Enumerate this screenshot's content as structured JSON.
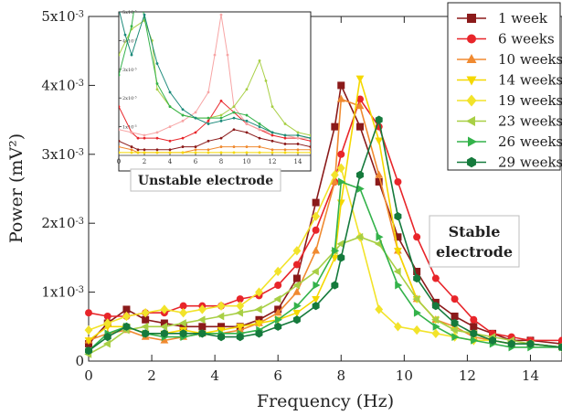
{
  "chart_data": [
    {
      "type": "line",
      "xlabel": "Frequency (Hz)",
      "ylabel": "Power (mV²)",
      "xlim": [
        0,
        15
      ],
      "ylim": [
        0,
        0.005
      ],
      "x_ticks": [
        0,
        2,
        4,
        6,
        8,
        10,
        12,
        14
      ],
      "x_tick_labels": [
        "0",
        "2",
        "4",
        "6",
        "8",
        "10",
        "12",
        "14"
      ],
      "y_ticks": [
        0,
        0.001,
        0.002,
        0.003,
        0.004,
        0.005
      ],
      "y_tick_labels": [
        {
          "base": "0",
          "exp": ""
        },
        {
          "base": "1x10",
          "exp": "-3"
        },
        {
          "base": "2x10",
          "exp": "-3"
        },
        {
          "base": "3x10",
          "exp": "-3"
        },
        {
          "base": "4x10",
          "exp": "-3"
        },
        {
          "base": "5x10",
          "exp": "-3"
        }
      ],
      "grid": false,
      "legend_position": "top-right",
      "annotation": {
        "line1": "Stable",
        "line2": "electrode"
      },
      "series": [
        {
          "name": "1 week",
          "color": "#8b1a1a",
          "marker": "square",
          "x": [
            0,
            0.6,
            1.2,
            1.8,
            2.4,
            3.0,
            3.6,
            4.2,
            4.8,
            5.4,
            6.0,
            6.6,
            7.2,
            7.8,
            8.0,
            8.6,
            9.2,
            9.8,
            10.4,
            11.0,
            11.6,
            12.2,
            12.8,
            13.4,
            14.0,
            15.0
          ],
          "y": [
            0.00025,
            0.00055,
            0.00075,
            0.0006,
            0.00055,
            0.0005,
            0.0005,
            0.0005,
            0.0005,
            0.0006,
            0.00075,
            0.0012,
            0.0023,
            0.0034,
            0.004,
            0.0034,
            0.0026,
            0.0018,
            0.0013,
            0.00085,
            0.00065,
            0.0005,
            0.0004,
            0.0003,
            0.0003,
            0.00025
          ]
        },
        {
          "name": "6 weeks",
          "color": "#e8252a",
          "marker": "circle",
          "x": [
            0,
            0.6,
            1.2,
            1.8,
            2.4,
            3.0,
            3.6,
            4.2,
            4.8,
            5.4,
            6.0,
            6.6,
            7.2,
            7.8,
            8.0,
            8.6,
            9.2,
            9.8,
            10.4,
            11.0,
            11.6,
            12.2,
            12.8,
            13.4,
            14.0,
            15.0
          ],
          "y": [
            0.0007,
            0.00065,
            0.00065,
            0.0007,
            0.0007,
            0.0008,
            0.0008,
            0.0008,
            0.0009,
            0.00095,
            0.0011,
            0.0014,
            0.0019,
            0.0026,
            0.003,
            0.0038,
            0.0034,
            0.0026,
            0.0018,
            0.0012,
            0.0009,
            0.0006,
            0.0004,
            0.00035,
            0.0003,
            0.0003
          ]
        },
        {
          "name": "10 weeks",
          "color": "#f08a30",
          "marker": "triangle-up",
          "x": [
            0,
            0.6,
            1.2,
            1.8,
            2.4,
            3.0,
            3.6,
            4.2,
            4.8,
            5.4,
            6.0,
            6.6,
            7.2,
            7.8,
            8.0,
            8.6,
            9.2,
            9.8,
            10.4,
            11.0,
            11.6,
            12.2,
            12.8,
            13.4,
            14.0,
            15.0
          ],
          "y": [
            0.0003,
            0.0004,
            0.00045,
            0.00035,
            0.0003,
            0.00035,
            0.0004,
            0.0004,
            0.00045,
            0.00055,
            0.0007,
            0.001,
            0.0016,
            0.0026,
            0.0038,
            0.0037,
            0.0027,
            0.0016,
            0.0009,
            0.0006,
            0.0005,
            0.00035,
            0.0003,
            0.00025,
            0.00025,
            0.0002
          ]
        },
        {
          "name": "14 weeks",
          "color": "#f5d800",
          "marker": "triangle-down",
          "x": [
            0,
            0.6,
            1.2,
            1.8,
            2.4,
            3.0,
            3.6,
            4.2,
            4.8,
            5.4,
            6.0,
            6.6,
            7.2,
            7.8,
            8.0,
            8.6,
            9.2,
            9.8,
            10.4,
            11.0,
            11.6,
            12.2,
            12.8,
            13.4,
            14.0,
            15.0
          ],
          "y": [
            0.0003,
            0.0005,
            0.0005,
            0.0004,
            0.0004,
            0.00045,
            0.0004,
            0.00045,
            0.0005,
            0.00055,
            0.0006,
            0.0007,
            0.0009,
            0.0015,
            0.0023,
            0.0041,
            0.0032,
            0.0016,
            0.0009,
            0.0006,
            0.00045,
            0.0004,
            0.0003,
            0.00025,
            0.00025,
            0.0002
          ]
        },
        {
          "name": "19 weeks",
          "color": "#f2e32a",
          "marker": "diamond",
          "x": [
            0,
            0.6,
            1.2,
            1.8,
            2.4,
            3.0,
            3.6,
            4.2,
            4.8,
            5.4,
            6.0,
            6.6,
            7.2,
            7.8,
            8.0,
            8.6,
            9.2,
            9.8,
            10.4,
            11.0,
            11.6,
            12.2,
            12.8,
            13.4,
            14.0,
            15.0
          ],
          "y": [
            0.00045,
            0.00055,
            0.00065,
            0.0007,
            0.00075,
            0.0007,
            0.00075,
            0.0008,
            0.0008,
            0.001,
            0.0013,
            0.0016,
            0.0021,
            0.0027,
            0.0028,
            0.0018,
            0.00075,
            0.0005,
            0.00045,
            0.0004,
            0.00035,
            0.0003,
            0.0003,
            0.00025,
            0.00025,
            0.0002
          ]
        },
        {
          "name": "23 weeks",
          "color": "#a8cf45",
          "marker": "triangle-left",
          "x": [
            0,
            0.6,
            1.2,
            1.8,
            2.4,
            3.0,
            3.6,
            4.2,
            4.8,
            5.4,
            6.0,
            6.6,
            7.2,
            7.8,
            8.0,
            8.6,
            9.2,
            9.8,
            10.4,
            11.0,
            11.6,
            12.2,
            12.8,
            13.4,
            14.0,
            15.0
          ],
          "y": [
            0.0001,
            0.00025,
            0.00045,
            0.0005,
            0.0005,
            0.00055,
            0.0006,
            0.00065,
            0.0007,
            0.00075,
            0.0009,
            0.0011,
            0.0013,
            0.0016,
            0.0017,
            0.0018,
            0.0017,
            0.0013,
            0.0009,
            0.0006,
            0.00045,
            0.0004,
            0.00035,
            0.0003,
            0.00025,
            0.0002
          ]
        },
        {
          "name": "26 weeks",
          "color": "#33b24a",
          "marker": "triangle-right",
          "x": [
            0,
            0.6,
            1.2,
            1.8,
            2.4,
            3.0,
            3.6,
            4.2,
            4.8,
            5.4,
            6.0,
            6.6,
            7.2,
            7.8,
            8.0,
            8.6,
            9.2,
            9.8,
            10.4,
            11.0,
            11.6,
            12.2,
            12.8,
            13.4,
            14.0,
            15.0
          ],
          "y": [
            0.00015,
            0.0004,
            0.0005,
            0.0004,
            0.00035,
            0.00035,
            0.0004,
            0.0004,
            0.0004,
            0.00045,
            0.0006,
            0.0008,
            0.0011,
            0.0016,
            0.0026,
            0.0025,
            0.0018,
            0.0011,
            0.0007,
            0.0005,
            0.00035,
            0.0003,
            0.00025,
            0.0002,
            0.0002,
            0.0002
          ]
        },
        {
          "name": "29 weeks",
          "color": "#157a3c",
          "marker": "hexagon",
          "x": [
            0,
            0.6,
            1.2,
            1.8,
            2.4,
            3.0,
            3.6,
            4.2,
            4.8,
            5.4,
            6.0,
            6.6,
            7.2,
            7.8,
            8.0,
            8.6,
            9.2,
            9.8,
            10.4,
            11.0,
            11.6,
            12.2,
            12.8,
            13.4,
            14.0,
            15.0
          ],
          "y": [
            0.00015,
            0.00035,
            0.0005,
            0.0004,
            0.0004,
            0.0004,
            0.0004,
            0.00035,
            0.00035,
            0.0004,
            0.0005,
            0.0006,
            0.0008,
            0.0011,
            0.0015,
            0.0027,
            0.0035,
            0.0021,
            0.0012,
            0.0008,
            0.00055,
            0.0004,
            0.0003,
            0.00025,
            0.00025,
            0.0002
          ]
        }
      ]
    },
    {
      "type": "line",
      "title": "Unstable electrode",
      "xlim": [
        0,
        15
      ],
      "ylim": [
        0,
        0.005
      ],
      "x_ticks": [
        0,
        2,
        4,
        6,
        8,
        10,
        12,
        14
      ],
      "x_tick_labels": [
        "0",
        "2",
        "4",
        "6",
        "8",
        "10",
        "12",
        "14"
      ],
      "y_ticks": [
        0.001,
        0.002,
        0.003,
        0.004,
        0.005
      ],
      "y_tick_labels": [
        {
          "base": "1x10",
          "exp": "-3"
        },
        {
          "base": "2x10",
          "exp": "-3"
        },
        {
          "base": "3x10",
          "exp": "-3"
        },
        {
          "base": "4x10",
          "exp": "-3"
        },
        {
          "base": "5x10",
          "exp": "-3"
        }
      ],
      "grid": false,
      "series": [
        {
          "color": "#8b1a1a",
          "x": [
            0,
            1,
            1.5,
            2,
            3,
            4,
            5,
            6,
            7,
            8,
            9,
            10,
            11,
            12,
            13,
            14,
            15
          ],
          "y": [
            0.0005,
            0.0003,
            0.0002,
            0.0002,
            0.0002,
            0.0002,
            0.0003,
            0.0003,
            0.0005,
            0.0006,
            0.0009,
            0.0008,
            0.0006,
            0.0005,
            0.0004,
            0.0004,
            0.0003
          ]
        },
        {
          "color": "#e8252a",
          "x": [
            0,
            1,
            1.5,
            2,
            3,
            4,
            5,
            6,
            7,
            8,
            9,
            10,
            11,
            12,
            13,
            14,
            15
          ],
          "y": [
            0.0017,
            0.0008,
            0.0006,
            0.0006,
            0.0006,
            0.0005,
            0.0006,
            0.0008,
            0.0012,
            0.0019,
            0.0015,
            0.0011,
            0.0009,
            0.0007,
            0.0006,
            0.0006,
            0.0005
          ]
        },
        {
          "color": "#f08a30",
          "x": [
            0,
            1,
            1.5,
            2,
            3,
            4,
            5,
            6,
            7,
            8,
            9,
            10,
            11,
            12,
            13,
            14,
            15
          ],
          "y": [
            0.0003,
            0.0002,
            0.0001,
            0.0001,
            0.0001,
            0.0001,
            0.0001,
            0.0002,
            0.0002,
            0.0003,
            0.0003,
            0.0003,
            0.0003,
            0.0002,
            0.0002,
            0.0002,
            0.0002
          ]
        },
        {
          "color": "#f5d800",
          "x": [
            0,
            1,
            1.5,
            2,
            3,
            4,
            5,
            6,
            7,
            8,
            9,
            10,
            11,
            12,
            13,
            14,
            15
          ],
          "y": [
            0.0001,
            0.0001,
            0.0001,
            0.0001,
            0.0001,
            0.0001,
            0.0001,
            0.0001,
            0.0001,
            0.0001,
            0.0001,
            0.0001,
            0.0001,
            0.0001,
            0.0001,
            0.0001,
            0.0001
          ]
        },
        {
          "color": "#f7a5a5",
          "x": [
            0,
            1,
            2,
            3,
            4,
            5,
            6,
            7,
            7.5,
            8,
            8.5,
            9,
            10,
            11,
            12,
            13,
            14,
            15
          ],
          "y": [
            0.0009,
            0.0008,
            0.0007,
            0.0008,
            0.001,
            0.0012,
            0.0015,
            0.0022,
            0.0035,
            0.0049,
            0.0035,
            0.0017,
            0.0011,
            0.0009,
            0.0008,
            0.0007,
            0.0006,
            0.0006
          ]
        },
        {
          "color": "#a8cf45",
          "x": [
            0,
            1,
            2,
            2.6,
            3,
            4,
            5,
            6,
            7,
            8,
            9,
            10,
            11,
            11.5,
            12,
            13,
            14,
            15
          ],
          "y": [
            0.0035,
            0.0044,
            0.0047,
            0.004,
            0.0023,
            0.0017,
            0.0014,
            0.0013,
            0.0013,
            0.0014,
            0.0017,
            0.0023,
            0.0033,
            0.0026,
            0.0017,
            0.0011,
            0.0008,
            0.0007
          ]
        },
        {
          "color": "#33b24a",
          "x": [
            0,
            1,
            1.5,
            2,
            3,
            4,
            5,
            6,
            7,
            8,
            9,
            10,
            11,
            12,
            13,
            14,
            15
          ],
          "y": [
            0.0028,
            0.0045,
            0.006,
            0.0048,
            0.0025,
            0.0017,
            0.0014,
            0.0013,
            0.0013,
            0.0013,
            0.0015,
            0.0014,
            0.0011,
            0.0008,
            0.0007,
            0.0007,
            0.0006
          ]
        },
        {
          "color": "#1b8a7a",
          "x": [
            0,
            0.5,
            1,
            2,
            3,
            4,
            5,
            6,
            7,
            8,
            9,
            10,
            11,
            12,
            13,
            14,
            15
          ],
          "y": [
            0.0051,
            0.0042,
            0.0035,
            0.0049,
            0.0032,
            0.0022,
            0.0016,
            0.0013,
            0.0011,
            0.0012,
            0.0013,
            0.0012,
            0.001,
            0.0008,
            0.0007,
            0.0007,
            0.0006
          ]
        }
      ]
    }
  ]
}
